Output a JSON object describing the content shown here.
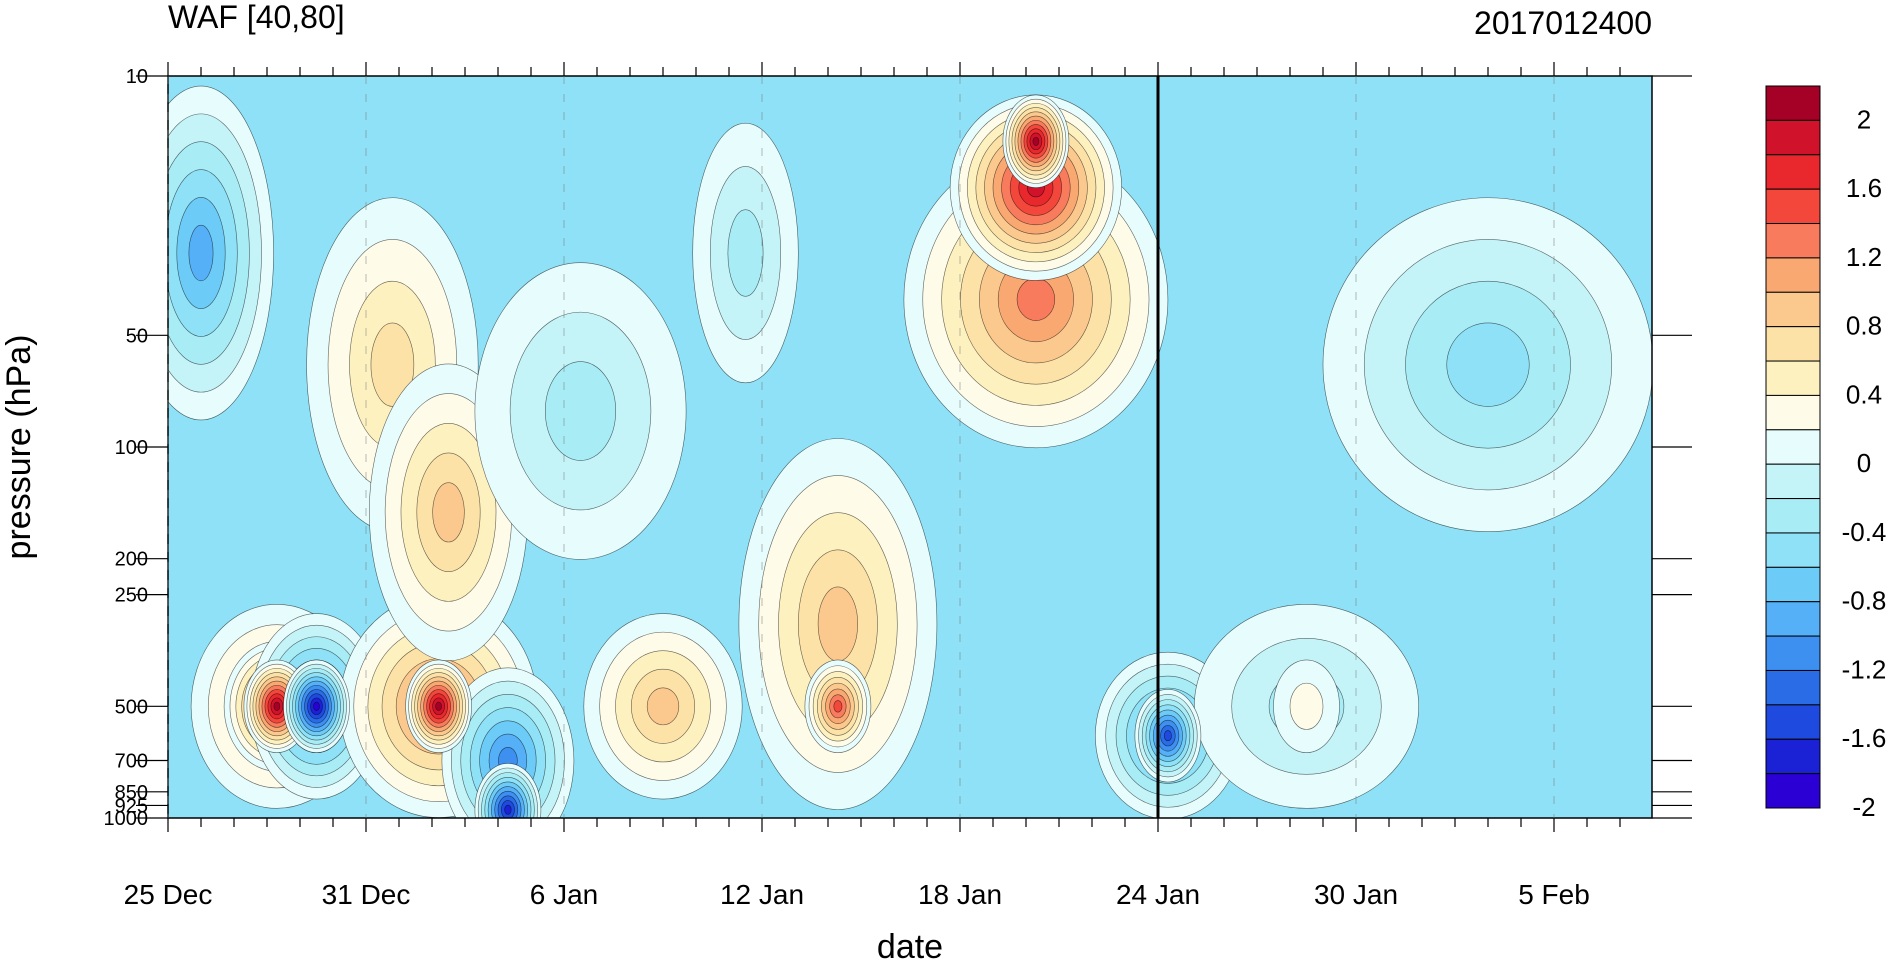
{
  "chart_data": {
    "type": "heatmap",
    "title_left": "WAF [40,80]",
    "title_right": "2017012400",
    "xlabel": "date",
    "ylabel": "pressure (hPa)",
    "x_range": [
      "2016-12-25",
      "2017-02-09"
    ],
    "y_range": [
      1000,
      10
    ],
    "y_scale": "log",
    "x_ticks": [
      "25 Dec",
      "31 Dec",
      "6 Jan",
      "12 Jan",
      "18 Jan",
      "24 Jan",
      "30 Jan",
      "5 Feb"
    ],
    "y_ticks": [
      "10",
      "50",
      "100",
      "200",
      "250",
      "500",
      "700",
      "850",
      "925",
      "1000"
    ],
    "y_tick_values": [
      10,
      50,
      100,
      200,
      250,
      500,
      700,
      850,
      925,
      1000
    ],
    "highlight_date": "24 Jan",
    "colorbar": {
      "labels": [
        "2",
        "1.6",
        "1.2",
        "0.8",
        "0.4",
        "0",
        "-0.4",
        "-0.8",
        "-1.2",
        "-1.6",
        "-2"
      ],
      "colors": [
        "#a50026",
        "#d0122a",
        "#e8282c",
        "#f2473a",
        "#f77b5c",
        "#f9a872",
        "#fbc98e",
        "#fde2a8",
        "#fdf1c0",
        "#fefbe8",
        "#e6fcfd",
        "#c4f4f8",
        "#a8ecf6",
        "#8ee1f6",
        "#6dcbf7",
        "#55b0f7",
        "#3d8ff0",
        "#2a6ce6",
        "#1f4ae0",
        "#1b22d6",
        "#2a00d5"
      ]
    },
    "features": [
      {
        "date_index": 3.3,
        "pressure": 500,
        "value": 2.0
      },
      {
        "date_index": 8.2,
        "pressure": 500,
        "value": 2.0
      },
      {
        "date_index": 4.5,
        "pressure": 500,
        "value": -2.0
      },
      {
        "date_index": 10.3,
        "pressure": 950,
        "value": -1.8
      },
      {
        "date_index": 20.3,
        "pressure": 500,
        "value": 1.4
      },
      {
        "date_index": 26.3,
        "pressure": 15,
        "value": 2.0
      },
      {
        "date_index": 30.3,
        "pressure": 600,
        "value": -1.6
      },
      {
        "date_index": 34.5,
        "pressure": 500,
        "value": 0.2
      }
    ]
  }
}
